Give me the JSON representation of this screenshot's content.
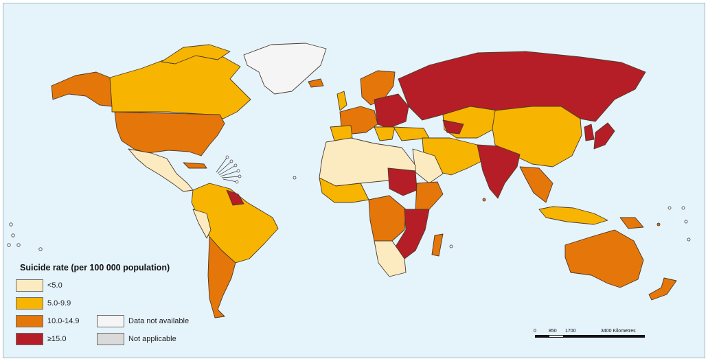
{
  "legend": {
    "title": "Suicide rate (per 100 000 population)",
    "categories": [
      {
        "label": "<5.0",
        "color": "#fcebc0"
      },
      {
        "label": "5.0-9.9",
        "color": "#f7b501"
      },
      {
        "label": "10.0-14.9",
        "color": "#e57609"
      },
      {
        "label": "≥15.0",
        "color": "#b51e26"
      },
      {
        "label": "Data not available",
        "color": "#f5f5f5"
      },
      {
        "label": "Not applicable",
        "color": "#dadada"
      }
    ]
  },
  "scale_bar": {
    "ticks": [
      "0",
      "850",
      "1700",
      "3400 Kilometres"
    ]
  },
  "colors": {
    "ocean": "#e5f3fb",
    "border": "#4a3a2a"
  }
}
